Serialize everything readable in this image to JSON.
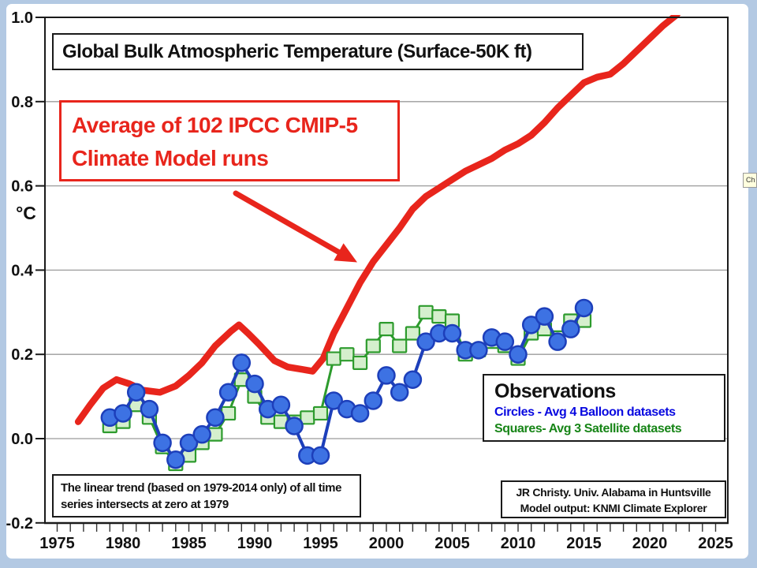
{
  "slide": {
    "frame_color": "#b3c9e3",
    "tooltip_fragment": "Ch"
  },
  "title_box": {
    "text": "Global Bulk Atmospheric Temperature (Surface-50K ft)"
  },
  "model_label_box": {
    "line1": "Average of 102 IPCC CMIP-5",
    "line2": "Climate Model runs",
    "color": "#e8251c"
  },
  "observations_box": {
    "title": "Observations",
    "balloon_legend": "Circles - Avg 4 Balloon datasets",
    "satellite_legend": "Squares- Avg 3 Satellite datasets",
    "balloon_text_color": "#0808e0",
    "satellite_text_color": "#178517"
  },
  "trend_note_box": {
    "line1": "The linear trend (based on 1979-2014 only) of all time",
    "line2": "series intersects at zero at 1979"
  },
  "credit_box": {
    "line1": "JR Christy. Univ. Alabama in Huntsville",
    "line2": "Model output: KNMI Climate Explorer"
  },
  "chart_data": {
    "type": "line",
    "title": "Global Bulk Atmospheric Temperature (Surface-50K ft)",
    "xlabel": "",
    "ylabel": "°C",
    "xlim": [
      1974,
      2025.9
    ],
    "ylim": [
      -0.2,
      1.0
    ],
    "grid": "horizontal-gray-lines",
    "legend_position": "inside-lower-right",
    "y_ticks": [
      {
        "label": "1.0",
        "value": 1.0
      },
      {
        "label": "0.8",
        "value": 0.8
      },
      {
        "label": "0.6",
        "value": 0.6
      },
      {
        "label": "0.4",
        "value": 0.4
      },
      {
        "label": "0.2",
        "value": 0.2
      },
      {
        "label": "0.0",
        "value": 0.0
      },
      {
        "label": "-0.2",
        "value": -0.2
      }
    ],
    "x_ticks": [
      {
        "label": "1975",
        "value": 1975
      },
      {
        "label": "1980",
        "value": 1980
      },
      {
        "label": "1985",
        "value": 1985
      },
      {
        "label": "1990",
        "value": 1990
      },
      {
        "label": "1995",
        "value": 1995
      },
      {
        "label": "2000",
        "value": 2000
      },
      {
        "label": "2005",
        "value": 2005
      },
      {
        "label": "2010",
        "value": 2010
      },
      {
        "label": "2015",
        "value": 2015
      },
      {
        "label": "2020",
        "value": 2020
      },
      {
        "label": "2025",
        "value": 2025
      }
    ],
    "x_minor_tick_start": 1974,
    "x_minor_tick_end": 2025,
    "x_minor_tick_step": 1,
    "series": [
      {
        "name": "Average of 102 IPCC CMIP-5 Climate Model runs",
        "marker": "none",
        "color": "#e8251c",
        "line_width": 8.5,
        "x": [
          1976.6,
          1977.5,
          1978.5,
          1979.5,
          1980.5,
          1981.5,
          1982.8,
          1984,
          1985,
          1986,
          1987,
          1988.2,
          1988.8,
          1989.5,
          1990.3,
          1991.5,
          1992.5,
          1993.5,
          1994.4,
          1995.2,
          1996,
          1997,
          1998,
          1999,
          2000,
          2001,
          2002,
          2003,
          2004,
          2005,
          2006,
          2007,
          2008,
          2009,
          2010,
          2011,
          2012,
          2013,
          2014,
          2015,
          2016,
          2017,
          2018,
          2019,
          2020,
          2021,
          2022,
          2023
        ],
        "values": [
          0.04,
          0.08,
          0.12,
          0.14,
          0.13,
          0.115,
          0.11,
          0.125,
          0.15,
          0.18,
          0.22,
          0.255,
          0.27,
          0.25,
          0.225,
          0.185,
          0.17,
          0.165,
          0.16,
          0.19,
          0.25,
          0.31,
          0.37,
          0.42,
          0.46,
          0.5,
          0.545,
          0.575,
          0.595,
          0.615,
          0.635,
          0.65,
          0.665,
          0.685,
          0.7,
          0.72,
          0.75,
          0.785,
          0.815,
          0.845,
          0.858,
          0.865,
          0.89,
          0.92,
          0.95,
          0.98,
          1.005,
          1.04
        ]
      },
      {
        "name": "Avg 3 Satellite datasets",
        "marker": "square",
        "color": "#2d9b2d",
        "marker_fill": "#d5efcd",
        "line_width": 3,
        "x": [
          1979,
          1980,
          1981,
          1982,
          1983,
          1984,
          1985,
          1986,
          1987,
          1988,
          1989,
          1990,
          1991,
          1992,
          1993,
          1994,
          1995,
          1996,
          1997,
          1998,
          1999,
          2000,
          2001,
          2002,
          2003,
          2004,
          2005,
          2006,
          2007,
          2008,
          2009,
          2010,
          2011,
          2012,
          2013,
          2014,
          2015
        ],
        "values": [
          0.03,
          0.04,
          0.08,
          0.05,
          -0.02,
          -0.06,
          -0.04,
          -0.01,
          0.01,
          0.06,
          0.14,
          0.1,
          0.05,
          0.04,
          0.04,
          0.05,
          0.06,
          0.19,
          0.2,
          0.18,
          0.22,
          0.26,
          0.22,
          0.25,
          0.3,
          0.29,
          0.28,
          0.2,
          0.21,
          0.23,
          0.22,
          0.19,
          0.25,
          0.26,
          0.24,
          0.28,
          0.28
        ]
      },
      {
        "name": "Avg 4 Balloon datasets",
        "marker": "circle",
        "color": "#1d3fba",
        "marker_fill": "#3d72e3",
        "line_width": 4,
        "x": [
          1979,
          1980,
          1981,
          1982,
          1983,
          1984,
          1985,
          1986,
          1987,
          1988,
          1989,
          1990,
          1991,
          1992,
          1993,
          1994,
          1995,
          1996,
          1997,
          1998,
          1999,
          2000,
          2001,
          2002,
          2003,
          2004,
          2005,
          2006,
          2007,
          2008,
          2009,
          2010,
          2011,
          2012,
          2013,
          2014,
          2015
        ],
        "values": [
          0.05,
          0.06,
          0.11,
          0.07,
          -0.01,
          -0.05,
          -0.01,
          0.01,
          0.05,
          0.11,
          0.18,
          0.13,
          0.07,
          0.08,
          0.03,
          -0.04,
          -0.04,
          0.09,
          0.07,
          0.06,
          0.09,
          0.15,
          0.11,
          0.14,
          0.23,
          0.25,
          0.25,
          0.21,
          0.21,
          0.24,
          0.23,
          0.2,
          0.27,
          0.29,
          0.23,
          0.26,
          0.31
        ]
      }
    ]
  }
}
